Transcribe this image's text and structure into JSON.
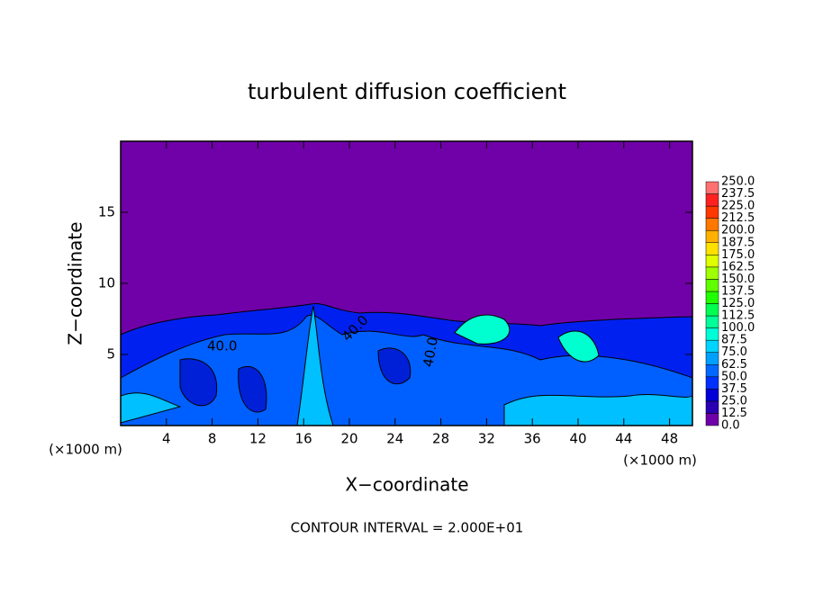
{
  "chart_data": {
    "type": "contour",
    "title": "turbulent diffusion coefficient",
    "xlabel": "X−coordinate",
    "ylabel": "Z−coordinate",
    "x_unit_label": "(×1000 m)",
    "x_unit_label_right": "(×1000 m)",
    "footer": "CONTOUR INTERVAL = 2.000E+01",
    "contour_labels": [
      "40.0",
      "40.0",
      "40.0"
    ],
    "xlim": [
      0,
      50
    ],
    "xticks": [
      4,
      8,
      12,
      16,
      20,
      24,
      28,
      32,
      36,
      40,
      44,
      48
    ],
    "ylim": [
      0,
      20
    ],
    "yticks": [
      5,
      10,
      15
    ],
    "background_color": "#7000a8",
    "colorbar": {
      "levels": [
        {
          "value": 0,
          "label": "0.0"
        },
        12.5,
        {
          "value": 25,
          "label": "25.0"
        },
        37.5,
        {
          "value": 50,
          "label": "50.0"
        },
        62.5,
        {
          "value": 75,
          "label": "75.0"
        },
        87.5,
        {
          "value": 100,
          "label": "100.0"
        },
        112.5,
        {
          "value": 125,
          "label": "125.0"
        },
        137.5,
        {
          "value": 150,
          "label": "150.0"
        },
        162.5,
        {
          "value": 175,
          "label": "175.0"
        },
        187.5,
        {
          "value": 200,
          "label": "200.0"
        },
        212.5,
        {
          "value": 225,
          "label": "225.0"
        },
        237.5,
        {
          "value": 250,
          "label": "250.0"
        }
      ],
      "colors": [
        "#7000a8",
        "#2a00b4",
        "#0000d8",
        "#0030ff",
        "#0068ff",
        "#00a0ff",
        "#00d4ff",
        "#00ffd8",
        "#00ff98",
        "#00ff50",
        "#20ff00",
        "#60ff00",
        "#a0ff00",
        "#e0ff00",
        "#ffe000",
        "#ffb000",
        "#ff7800",
        "#ff3800",
        "#ff2020",
        "#ff7070"
      ]
    }
  }
}
